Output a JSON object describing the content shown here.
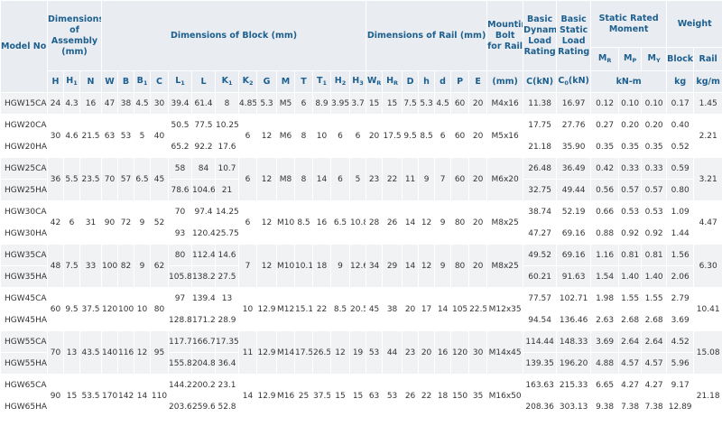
{
  "header": {
    "model": "Model No.",
    "groups": [
      "Dimensions of Assembly (mm)",
      "Dimensions of Block (mm)",
      "Dimensions of Rail (mm)",
      "Mounting Bolt for Rail",
      "Basic Dynamic Load Rating",
      "Basic Static Load Rating",
      "Static Rated Moment",
      "Weight"
    ],
    "moments": [
      {
        "t": "M",
        "sub": "R"
      },
      {
        "t": "M",
        "sub": "P"
      },
      {
        "t": "M",
        "sub": "Y"
      }
    ],
    "weights": [
      "Block",
      "Rail"
    ],
    "symbols": [
      "H",
      {
        "t": "H",
        "sub": "1"
      },
      "N",
      "W",
      "B",
      {
        "t": "B",
        "sub": "1"
      },
      "C",
      {
        "t": "L",
        "sub": "1"
      },
      "L",
      {
        "t": "K",
        "sub": "1"
      },
      {
        "t": "K",
        "sub": "2"
      },
      "G",
      "M",
      "T",
      {
        "t": "T",
        "sub": "1"
      },
      {
        "t": "H",
        "sub": "2"
      },
      {
        "t": "H",
        "sub": "3"
      },
      {
        "t": "W",
        "sub": "R"
      },
      {
        "t": "H",
        "sub": "R"
      },
      "D",
      "h",
      "d",
      "P",
      "E",
      "(mm)",
      "C(kN)",
      {
        "t": "C",
        "sub": "0",
        "tail": "(kN)"
      },
      "kN-m",
      "kg",
      "kg/m"
    ]
  },
  "rows": [
    [
      "HGW15CA",
      "24",
      "4.3",
      "16",
      "47",
      "38",
      "4.5",
      "30",
      "39.4",
      "61.4",
      "8",
      "4.85",
      "5.3",
      "M5",
      "6",
      "8.9",
      "3.95",
      "3.7",
      "15",
      "15",
      "7.5",
      "5.3",
      "4.5",
      "60",
      "20",
      "M4x16",
      "11.38",
      "16.97",
      "0.12",
      "0.10",
      "0.10",
      "0.17",
      "1.45"
    ],
    [
      "HGW20CA",
      "30",
      "4.6",
      "21.5",
      "63",
      "53",
      "5",
      "40",
      "50.5",
      "77.5",
      "10.25",
      "6",
      "12",
      "M6",
      "8",
      "10",
      "6",
      "6",
      "20",
      "17.5",
      "9.5",
      "8.5",
      "6",
      "60",
      "20",
      "M5x16",
      "17.75",
      "27.76",
      "0.27",
      "0.20",
      "0.20",
      "0.40",
      "2.21"
    ],
    [
      "HGW20HA",
      null,
      null,
      null,
      null,
      null,
      null,
      null,
      "65.2",
      "92.2",
      "17.6",
      null,
      null,
      null,
      null,
      null,
      null,
      null,
      null,
      null,
      null,
      null,
      null,
      null,
      null,
      null,
      "21.18",
      "35.90",
      "0.35",
      "0.35",
      "0.35",
      "0.52",
      null
    ],
    [
      "HGW25CA",
      "36",
      "5.5",
      "23.5",
      "70",
      "57",
      "6.5",
      "45",
      "58",
      "84",
      "10.7",
      "6",
      "12",
      "M8",
      "8",
      "14",
      "6",
      "5",
      "23",
      "22",
      "11",
      "9",
      "7",
      "60",
      "20",
      "M6x20",
      "26.48",
      "36.49",
      "0.42",
      "0.33",
      "0.33",
      "0.59",
      "3.21"
    ],
    [
      "HGW25HA",
      null,
      null,
      null,
      null,
      null,
      null,
      null,
      "78.6",
      "104.6",
      "21",
      null,
      null,
      null,
      null,
      null,
      null,
      null,
      null,
      null,
      null,
      null,
      null,
      null,
      null,
      null,
      "32.75",
      "49.44",
      "0.56",
      "0.57",
      "0.57",
      "0.80",
      null
    ],
    [
      "HGW30CA",
      "42",
      "6",
      "31",
      "90",
      "72",
      "9",
      "52",
      "70",
      "97.4",
      "14.25",
      "6",
      "12",
      "M10",
      "8.5",
      "16",
      "6.5",
      "10.8",
      "28",
      "26",
      "14",
      "12",
      "9",
      "80",
      "20",
      "M8x25",
      "38.74",
      "52.19",
      "0.66",
      "0.53",
      "0.53",
      "1.09",
      "4.47"
    ],
    [
      "HGW30HA",
      null,
      null,
      null,
      null,
      null,
      null,
      null,
      "93",
      "120.4",
      "25.75",
      null,
      null,
      null,
      null,
      null,
      null,
      null,
      null,
      null,
      null,
      null,
      null,
      null,
      null,
      null,
      "47.27",
      "69.16",
      "0.88",
      "0.92",
      "0.92",
      "1.44",
      null
    ],
    [
      "HGW35CA",
      "48",
      "7.5",
      "33",
      "100",
      "82",
      "9",
      "62",
      "80",
      "112.4",
      "14.6",
      "7",
      "12",
      "M10",
      "10.1",
      "18",
      "9",
      "12.6",
      "34",
      "29",
      "14",
      "12",
      "9",
      "80",
      "20",
      "M8x25",
      "49.52",
      "69.16",
      "1.16",
      "0.81",
      "0.81",
      "1.56",
      "6.30"
    ],
    [
      "HGW35HA",
      null,
      null,
      null,
      null,
      null,
      null,
      null,
      "105.8",
      "138.2",
      "27.5",
      null,
      null,
      null,
      null,
      null,
      null,
      null,
      null,
      null,
      null,
      null,
      null,
      null,
      null,
      null,
      "60.21",
      "91.63",
      "1.54",
      "1.40",
      "1.40",
      "2.06",
      null
    ],
    [
      "HGW45CA",
      "60",
      "9.5",
      "37.5",
      "120",
      "100",
      "10",
      "80",
      "97",
      "139.4",
      "13",
      "10",
      "12.9",
      "M12",
      "15.1",
      "22",
      "8.5",
      "20.5",
      "45",
      "38",
      "20",
      "17",
      "14",
      "105",
      "22.5",
      "M12x35",
      "77.57",
      "102.71",
      "1.98",
      "1.55",
      "1.55",
      "2.79",
      "10.41"
    ],
    [
      "HGW45HA",
      null,
      null,
      null,
      null,
      null,
      null,
      null,
      "128.8",
      "171.2",
      "28.9",
      null,
      null,
      null,
      null,
      null,
      null,
      null,
      null,
      null,
      null,
      null,
      null,
      null,
      null,
      null,
      "94.54",
      "136.46",
      "2.63",
      "2.68",
      "2.68",
      "3.69",
      null
    ],
    [
      "HGW55CA",
      "70",
      "13",
      "43.5",
      "140",
      "116",
      "12",
      "95",
      "117.7",
      "166.7",
      "17.35",
      "11",
      "12.9",
      "M14",
      "17.5",
      "26.5",
      "12",
      "19",
      "53",
      "44",
      "23",
      "20",
      "16",
      "120",
      "30",
      "M14x45",
      "114.44",
      "148.33",
      "3.69",
      "2.64",
      "2.64",
      "4.52",
      "15.08"
    ],
    [
      "HGW55HA",
      null,
      null,
      null,
      null,
      null,
      null,
      null,
      "155.8",
      "204.8",
      "36.4",
      null,
      null,
      null,
      null,
      null,
      null,
      null,
      null,
      null,
      null,
      null,
      null,
      null,
      null,
      null,
      "139.35",
      "196.20",
      "4.88",
      "4.57",
      "4.57",
      "5.96",
      null
    ],
    [
      "HGW65CA",
      "90",
      "15",
      "53.5",
      "170",
      "142",
      "14",
      "110",
      "144.2",
      "200.2",
      "23.1",
      "14",
      "12.9",
      "M16",
      "25",
      "37.5",
      "15",
      "15",
      "63",
      "53",
      "26",
      "22",
      "18",
      "150",
      "35",
      "M16x50",
      "163.63",
      "215.33",
      "6.65",
      "4.27",
      "4.27",
      "9.17",
      "21.18"
    ],
    [
      "HGW65HA",
      null,
      null,
      null,
      null,
      null,
      null,
      null,
      "203.6",
      "259.6",
      "52.8",
      null,
      null,
      null,
      null,
      null,
      null,
      null,
      null,
      null,
      null,
      null,
      null,
      null,
      null,
      null,
      "208.36",
      "303.13",
      "9.38",
      "7.38",
      "7.38",
      "12.89",
      null
    ]
  ]
}
